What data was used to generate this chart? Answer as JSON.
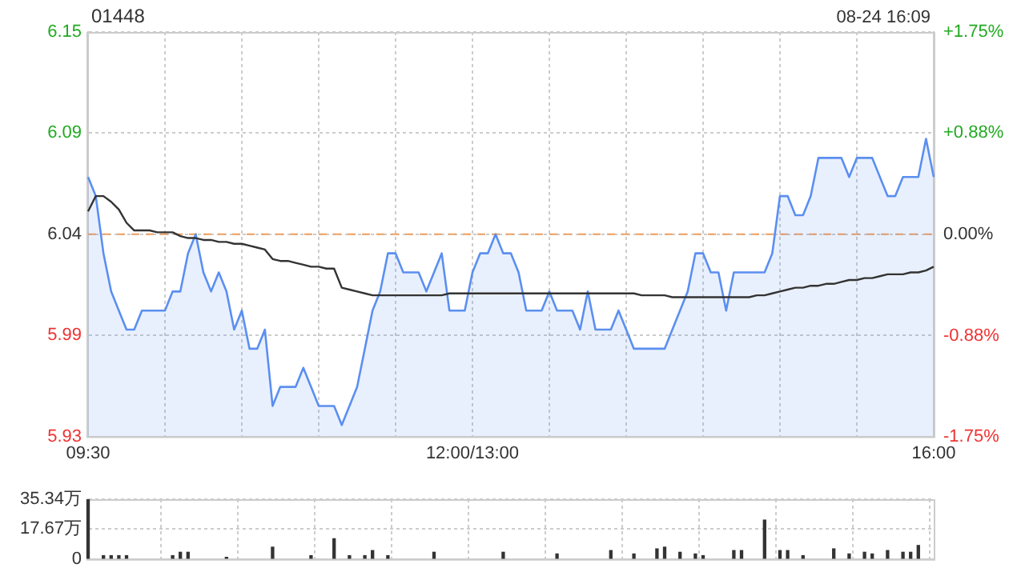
{
  "chart_data": [
    {
      "type": "line",
      "title": "01448",
      "annotations": [
        "08-24 16:09"
      ],
      "categories": [
        "09:30",
        null,
        null,
        null,
        null,
        null,
        null,
        null,
        null,
        null,
        null,
        null,
        null,
        null,
        null,
        null,
        null,
        null,
        null,
        null,
        null,
        null,
        null,
        null,
        null,
        null,
        null,
        null,
        null,
        null,
        null,
        null,
        null,
        null,
        null,
        null,
        null,
        null,
        null,
        null,
        null,
        null,
        null,
        null,
        null,
        null,
        null,
        null,
        null,
        null,
        "12:00/13:00",
        null,
        null,
        null,
        null,
        null,
        null,
        null,
        null,
        null,
        null,
        null,
        null,
        null,
        null,
        null,
        null,
        null,
        null,
        null,
        null,
        null,
        null,
        null,
        null,
        null,
        null,
        null,
        null,
        null,
        null,
        null,
        null,
        null,
        null,
        null,
        null,
        null,
        null,
        null,
        null,
        null,
        null,
        null,
        null,
        null,
        null,
        null,
        null,
        null,
        null,
        null,
        null,
        null,
        null,
        null,
        null,
        null,
        null,
        null,
        "16:00"
      ],
      "ylim": [
        5.934,
        6.146
      ],
      "yticks": [
        {
          "value": 5.934,
          "label": "5.93"
        },
        {
          "value": 5.987,
          "label": "5.99"
        },
        6.04,
        {
          "value": 6.093,
          "label": "6.09"
        },
        {
          "value": 6.146,
          "label": "6.15"
        }
      ],
      "y2lim": [
        -1.75,
        1.75
      ],
      "y2ticks": [
        {
          "value": -1.75,
          "label": "-1.75%"
        },
        {
          "value": -0.88,
          "label": "-0.88%"
        },
        {
          "value": 0,
          "label": "0.00%"
        },
        {
          "value": 0.88,
          "label": "+0.88%"
        },
        {
          "value": 1.75,
          "label": "+1.75%"
        }
      ],
      "grid": true,
      "marker": "none",
      "ref_lines": [
        {
          "axis": "y",
          "value": 6.04,
          "color": "#f0a060",
          "line_style": "dashed"
        }
      ],
      "series": [
        {
          "type": "area",
          "color": "#5b8ff0",
          "values": [
            6.07,
            6.06,
            6.03,
            6.01,
            6.0,
            5.99,
            5.99,
            6.0,
            6.0,
            6.0,
            6.0,
            6.01,
            6.01,
            6.03,
            6.04,
            6.02,
            6.01,
            6.02,
            6.01,
            5.99,
            6.0,
            5.98,
            5.98,
            5.99,
            5.95,
            5.96,
            5.96,
            5.96,
            5.97,
            5.96,
            5.95,
            5.95,
            5.95,
            5.94,
            5.95,
            5.96,
            5.98,
            6.0,
            6.01,
            6.03,
            6.03,
            6.02,
            6.02,
            6.02,
            6.01,
            6.02,
            6.03,
            6.0,
            6.0,
            6.0,
            6.02,
            6.03,
            6.03,
            6.04,
            6.03,
            6.03,
            6.02,
            6.0,
            6.0,
            6.0,
            6.01,
            6.0,
            6.0,
            6.0,
            5.99,
            6.01,
            5.99,
            5.99,
            5.99,
            6.0,
            5.99,
            5.98,
            5.98,
            5.98,
            5.98,
            5.98,
            5.99,
            6.0,
            6.01,
            6.03,
            6.03,
            6.02,
            6.02,
            6.0,
            6.02,
            6.02,
            6.02,
            6.02,
            6.02,
            6.03,
            6.06,
            6.06,
            6.05,
            6.05,
            6.06,
            6.08,
            6.08,
            6.08,
            6.08,
            6.07,
            6.08,
            6.08,
            6.08,
            6.07,
            6.06,
            6.06,
            6.07,
            6.07,
            6.07,
            6.09,
            6.07
          ]
        },
        {
          "type": "line",
          "color": "#333333",
          "values": [
            6.052,
            6.06,
            6.06,
            6.057,
            6.053,
            6.046,
            6.042,
            6.042,
            6.042,
            6.041,
            6.041,
            6.041,
            6.039,
            6.038,
            6.038,
            6.037,
            6.037,
            6.036,
            6.036,
            6.035,
            6.035,
            6.034,
            6.033,
            6.032,
            6.027,
            6.026,
            6.026,
            6.025,
            6.024,
            6.023,
            6.023,
            6.022,
            6.022,
            6.012,
            6.011,
            6.01,
            6.009,
            6.008,
            6.008,
            6.008,
            6.008,
            6.008,
            6.008,
            6.008,
            6.008,
            6.008,
            6.008,
            6.009,
            6.009,
            6.009,
            6.009,
            6.009,
            6.009,
            6.009,
            6.009,
            6.009,
            6.009,
            6.009,
            6.009,
            6.009,
            6.009,
            6.009,
            6.009,
            6.009,
            6.009,
            6.009,
            6.009,
            6.009,
            6.009,
            6.009,
            6.009,
            6.009,
            6.008,
            6.008,
            6.008,
            6.008,
            6.007,
            6.007,
            6.007,
            6.007,
            6.007,
            6.007,
            6.007,
            6.007,
            6.007,
            6.007,
            6.007,
            6.008,
            6.008,
            6.009,
            6.01,
            6.011,
            6.012,
            6.012,
            6.013,
            6.013,
            6.014,
            6.014,
            6.015,
            6.016,
            6.016,
            6.017,
            6.017,
            6.018,
            6.019,
            6.019,
            6.019,
            6.02,
            6.02,
            6.021,
            6.023
          ]
        }
      ]
    },
    {
      "type": "bar",
      "tick_labels": "y",
      "categories": [
        null,
        null,
        null,
        null,
        null,
        null,
        null,
        null,
        null,
        null,
        null,
        null,
        null,
        null,
        null,
        null,
        null,
        null,
        null,
        null,
        null,
        null,
        null,
        null,
        null,
        null,
        null,
        null,
        null,
        null,
        null,
        null,
        null,
        null,
        null,
        null,
        null,
        null,
        null,
        null,
        null,
        null,
        null,
        null,
        null,
        null,
        null,
        null,
        null,
        null,
        null,
        null,
        null,
        null,
        null,
        null,
        null,
        null,
        null,
        null,
        null,
        null,
        null,
        null,
        null,
        null,
        null,
        null,
        null,
        null,
        null,
        null,
        null,
        null,
        null,
        null,
        null,
        null,
        null,
        null,
        null,
        null,
        null,
        null,
        null,
        null,
        null,
        null,
        null,
        null,
        null,
        null,
        null,
        null,
        null,
        null,
        null,
        null,
        null,
        null,
        null,
        null,
        null,
        null,
        null,
        null,
        null,
        null,
        null,
        null,
        null
      ],
      "ylim": [
        0,
        35.34
      ],
      "yticks": [
        0,
        {
          "value": 17.67,
          "label": "17.67万"
        },
        {
          "value": 35.34,
          "label": "35.34万"
        }
      ],
      "grid": true,
      "series": [
        {
          "color": "#333333",
          "values": [
            35,
            null,
            2,
            2,
            2,
            2,
            null,
            null,
            null,
            null,
            null,
            2,
            4,
            4,
            null,
            null,
            null,
            null,
            1,
            null,
            null,
            null,
            null,
            null,
            7,
            null,
            null,
            null,
            null,
            2,
            null,
            null,
            12,
            null,
            2,
            null,
            2,
            5,
            null,
            2,
            null,
            null,
            null,
            null,
            null,
            4,
            null,
            null,
            null,
            null,
            null,
            null,
            null,
            null,
            4,
            null,
            null,
            null,
            null,
            null,
            null,
            3,
            null,
            null,
            null,
            null,
            null,
            null,
            5,
            null,
            null,
            3,
            null,
            null,
            6,
            7,
            null,
            4,
            null,
            3,
            2,
            null,
            null,
            null,
            5,
            5,
            null,
            null,
            23,
            null,
            5,
            5,
            null,
            2,
            null,
            null,
            null,
            6,
            null,
            3,
            null,
            4,
            3,
            null,
            5,
            null,
            4,
            4,
            8,
            null,
            null
          ]
        }
      ]
    }
  ]
}
